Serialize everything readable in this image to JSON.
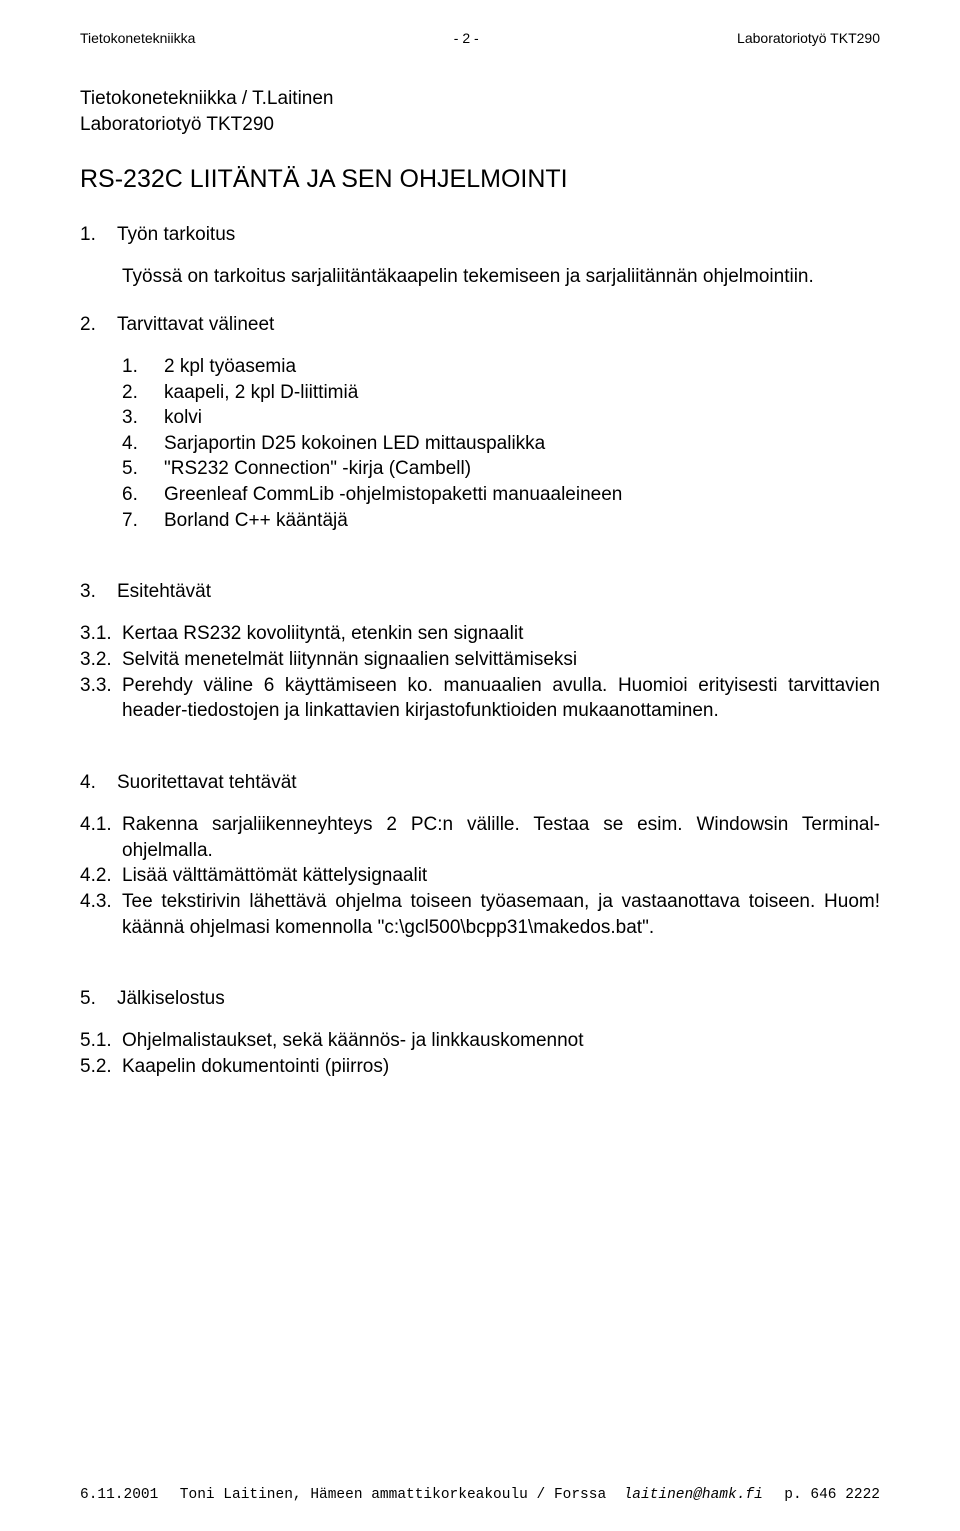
{
  "header": {
    "left": "Tietokonetekniikka",
    "center": "- 2 -",
    "right": "Laboratoriotyö TKT290"
  },
  "subheading": {
    "line1": "Tietokonetekniikka / T.Laitinen",
    "line2": "Laboratoriotyö  TKT290"
  },
  "title": "RS-232C LIITÄNTÄ JA SEN OHJELMOINTI",
  "s1": {
    "num": "1.",
    "heading": "Työn tarkoitus",
    "text": "Työssä on tarkoitus sarjaliitäntäkaapelin tekemiseen ja sarjaliitännän ohjelmointiin."
  },
  "s2": {
    "num": "2.",
    "heading": "Tarvittavat välineet",
    "items": [
      {
        "n": "1.",
        "t": "2 kpl työasemia"
      },
      {
        "n": "2.",
        "t": "kaapeli, 2 kpl D-liittimiä"
      },
      {
        "n": "3.",
        "t": "kolvi"
      },
      {
        "n": "4.",
        "t": "Sarjaportin D25 kokoinen LED mittauspalikka"
      },
      {
        "n": "5.",
        "t": "\"RS232 Connection\" -kirja (Cambell)"
      },
      {
        "n": "6.",
        "t": "Greenleaf CommLib -ohjelmistopaketti manuaaleineen"
      },
      {
        "n": "7.",
        "t": "Borland C++ kääntäjä"
      }
    ]
  },
  "s3": {
    "num": "3.",
    "heading": "Esitehtävät",
    "items": [
      {
        "n": "3.1.",
        "t": "Kertaa RS232 kovoliityntä, etenkin sen signaalit"
      },
      {
        "n": "3.2.",
        "t": "Selvitä menetelmät liitynnän signaalien selvittämiseksi"
      },
      {
        "n": "3.3.",
        "t": "Perehdy väline 6 käyttämiseen ko. manuaalien avulla. Huomioi erityisesti tarvittavien header-tiedostojen ja linkattavien kirjastofunktioiden mukaanottaminen."
      }
    ]
  },
  "s4": {
    "num": "4.",
    "heading": "Suoritettavat tehtävät",
    "items": [
      {
        "n": "4.1.",
        "t": "Rakenna sarjaliikenneyhteys 2 PC:n välille. Testaa se esim. Windowsin Terminal-ohjelmalla."
      },
      {
        "n": "4.2.",
        "t": "Lisää välttämättömät kättelysignaalit"
      },
      {
        "n": "4.3.",
        "t": "Tee tekstirivin lähettävä ohjelma toiseen työasemaan, ja vastaanottava toiseen. Huom! käännä ohjelmasi komennolla \"c:\\gcl500\\bcpp31\\makedos.bat\"."
      }
    ]
  },
  "s5": {
    "num": "5.",
    "heading": "Jälkiselostus",
    "items": [
      {
        "n": "5.1.",
        "t": "Ohjelmalistaukset, sekä käännös- ja linkkauskomennot"
      },
      {
        "n": "5.2.",
        "t": "Kaapelin dokumentointi (piirros)"
      }
    ]
  },
  "footer": {
    "left": "6.11.2001",
    "center_plain": "Toni Laitinen, Hämeen ammattikorkeakoulu / Forssa",
    "center_italic": "laitinen@hamk.fi",
    "right": "p. 646 2222"
  }
}
